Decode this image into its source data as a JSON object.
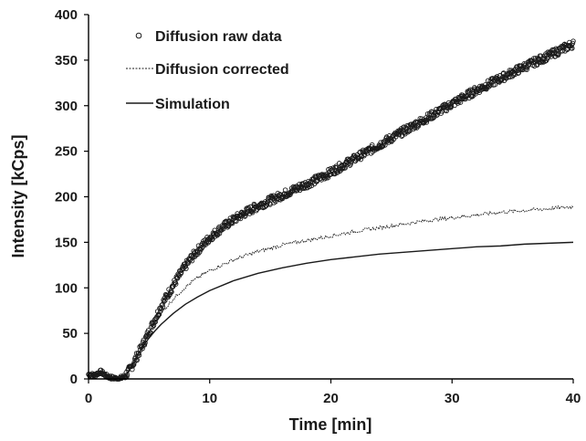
{
  "chart_data": {
    "type": "scatter",
    "title": "",
    "xlabel": "Time [min]",
    "ylabel": "Intensity [kCps]",
    "xlim": [
      0,
      40
    ],
    "ylim": [
      0,
      400
    ],
    "xticks": [
      0,
      10,
      20,
      30,
      40
    ],
    "yticks": [
      0,
      50,
      100,
      150,
      200,
      250,
      300,
      350,
      400
    ],
    "x_tick_labels": [
      "0",
      "10",
      "20",
      "30",
      "40"
    ],
    "y_tick_labels": [
      "0",
      "50",
      "100",
      "150",
      "200",
      "250",
      "300",
      "350",
      "400"
    ],
    "grid": false,
    "legend_position": "top-left",
    "colors": {
      "axis": "#000000",
      "series": "#1a1a1a"
    },
    "series": [
      {
        "name": "Diffusion raw data",
        "style": "open-circle-markers",
        "x": [
          0,
          0.5,
          1,
          1.5,
          2,
          2.5,
          3,
          3.5,
          4,
          4.5,
          5,
          5.5,
          6,
          6.5,
          7,
          7.5,
          8,
          8.5,
          9,
          9.5,
          10,
          11,
          12,
          13,
          14,
          15,
          16,
          17,
          18,
          19,
          20,
          22,
          24,
          26,
          28,
          30,
          32,
          34,
          36,
          38,
          40
        ],
        "y": [
          5,
          4,
          8,
          3,
          1,
          0,
          3,
          12,
          25,
          38,
          52,
          66,
          80,
          92,
          103,
          114,
          124,
          133,
          141,
          148,
          155,
          166,
          175,
          183,
          190,
          196,
          202,
          208,
          214,
          220,
          227,
          242,
          257,
          272,
          287,
          302,
          317,
          330,
          343,
          355,
          368
        ]
      },
      {
        "name": "Diffusion corrected",
        "style": "dotted-line",
        "x": [
          0,
          1,
          2,
          2.5,
          3,
          3.5,
          4,
          4.5,
          5,
          5.5,
          6,
          7,
          8,
          9,
          10,
          12,
          14,
          16,
          18,
          20,
          22,
          24,
          26,
          28,
          30,
          32,
          34,
          36,
          38,
          40
        ],
        "y": [
          5,
          6,
          2,
          0,
          3,
          12,
          25,
          37,
          50,
          62,
          72,
          88,
          101,
          111,
          119,
          131,
          140,
          147,
          152,
          157,
          162,
          166,
          170,
          174,
          177,
          180,
          183,
          185,
          187,
          189
        ]
      },
      {
        "name": "Simulation",
        "style": "solid-line",
        "x": [
          2.8,
          3,
          3.5,
          4,
          4.5,
          5,
          5.5,
          6,
          7,
          8,
          9,
          10,
          12,
          14,
          16,
          18,
          20,
          22,
          24,
          26,
          28,
          30,
          32,
          34,
          36,
          38,
          40
        ],
        "y": [
          0,
          2,
          12,
          25,
          36,
          45,
          53,
          60,
          72,
          82,
          90,
          97,
          108,
          116,
          122,
          127,
          131,
          134,
          137,
          139,
          141,
          143,
          145,
          146,
          148,
          149,
          150
        ]
      }
    ]
  }
}
